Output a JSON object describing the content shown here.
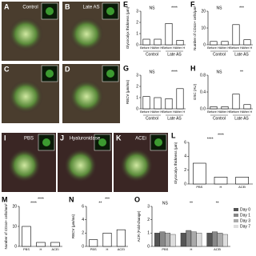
{
  "panels": [
    {
      "label": "A",
      "title": "Control"
    },
    {
      "label": "B",
      "title": "Late AS"
    },
    {
      "label": "C",
      "title": null
    },
    {
      "label": "D",
      "title": null
    },
    {
      "label": "I",
      "title": "PBS"
    },
    {
      "label": "J",
      "title": "Hyaluronidase"
    },
    {
      "label": "K",
      "title": "ACEi"
    }
  ],
  "chart_data": [
    {
      "type": "bar",
      "label": "E",
      "ylabel": "Glycocalyx thickness (μm)",
      "categories": [
        "Before H",
        "After H",
        "Before H",
        "After H"
      ],
      "groups": [
        "Control",
        "Late AS"
      ],
      "values": [
        0.5,
        0.5,
        1.9,
        0.4
      ],
      "color": "#ffffff",
      "ylim": [
        0,
        3
      ],
      "yticks": [
        0,
        1,
        2,
        3
      ],
      "annotations": [
        "NS",
        "****"
      ]
    },
    {
      "type": "bar",
      "label": "F",
      "ylabel": "Number of CD44+ cells/μm²",
      "categories": [
        "Before H",
        "After H",
        "Before H",
        "After H"
      ],
      "groups": [
        "Control",
        "Late AS"
      ],
      "values": [
        2,
        2,
        12,
        3
      ],
      "color": "#ffffff",
      "ylim": [
        0,
        20
      ],
      "yticks": [
        0,
        10,
        20
      ],
      "annotations": [
        "NS",
        "***"
      ]
    },
    {
      "type": "bar",
      "label": "G",
      "ylabel": "RBCV (μm/ms)",
      "categories": [
        "Before H",
        "After H",
        "Before H",
        "After H"
      ],
      "groups": [
        "Control",
        "Late AS"
      ],
      "values": [
        1.1,
        1.0,
        0.9,
        1.8
      ],
      "color": "#ffffff",
      "ylim": [
        0,
        3
      ],
      "yticks": [
        0,
        1,
        2,
        3
      ],
      "annotations": [
        "NS",
        "****"
      ]
    },
    {
      "type": "bar",
      "label": "H",
      "ylabel": "GSC (AU)",
      "categories": [
        "Before H",
        "After H",
        "Before H",
        "After H"
      ],
      "groups": [
        "Control",
        "Late AS"
      ],
      "values": [
        0.05,
        0.05,
        0.35,
        0.1
      ],
      "color": "#ffffff",
      "ylim": [
        0,
        0.8
      ],
      "yticks": [
        {
          "value": 0,
          "label": "0.0"
        },
        0.4,
        0.8
      ],
      "annotations": [
        "NS",
        "**"
      ]
    },
    {
      "type": "bar",
      "label": "L",
      "ylabel": "Glycocalyx thickness (μm)",
      "categories": [
        "PBS",
        "H",
        "ACEi"
      ],
      "values": [
        3,
        1,
        1
      ],
      "color": "#ffffff",
      "ylim": [
        0,
        6
      ],
      "yticks": [
        0,
        2,
        4,
        6
      ],
      "annotations": [
        "****",
        "****"
      ]
    },
    {
      "type": "bar",
      "label": "M",
      "ylabel": "Number of CD44+ cells/mm²",
      "categories": [
        "PBS",
        "H",
        "ACEi"
      ],
      "values": [
        10,
        2,
        2
      ],
      "color": "#ffffff",
      "ylim": [
        0,
        20
      ],
      "yticks": [
        0,
        10,
        20
      ],
      "annotations": [
        "****",
        "****"
      ]
    },
    {
      "type": "bar",
      "label": "N",
      "ylabel": "RBCV (μm/ms)",
      "categories": [
        "PBS",
        "H",
        "ACEi"
      ],
      "values": [
        1,
        2,
        2.5
      ],
      "color": "#ffffff",
      "ylim": [
        0,
        6
      ],
      "yticks": [
        0,
        2,
        4,
        6
      ],
      "annotations": [
        "**",
        "***"
      ]
    },
    {
      "type": "groupedbar",
      "label": "O",
      "ylabel": "ACR (Fold-change)",
      "categories": [
        "PBS",
        "H",
        "ACEi"
      ],
      "series": [
        {
          "name": "Day 0",
          "color": "#555555",
          "values": [
            1,
            1,
            1
          ]
        },
        {
          "name": "Day 1",
          "color": "#888888",
          "values": [
            1.1,
            1.2,
            1.1
          ]
        },
        {
          "name": "Day 3",
          "color": "#aaaaaa",
          "values": [
            1,
            1.1,
            1
          ]
        },
        {
          "name": "Day 7",
          "color": "#dddddd",
          "values": [
            0.9,
            1,
            0.9
          ]
        }
      ],
      "ylim": [
        0,
        3
      ],
      "yticks": [
        0,
        1,
        2,
        3
      ],
      "annotations": [
        "NS",
        "**",
        "**"
      ]
    }
  ]
}
